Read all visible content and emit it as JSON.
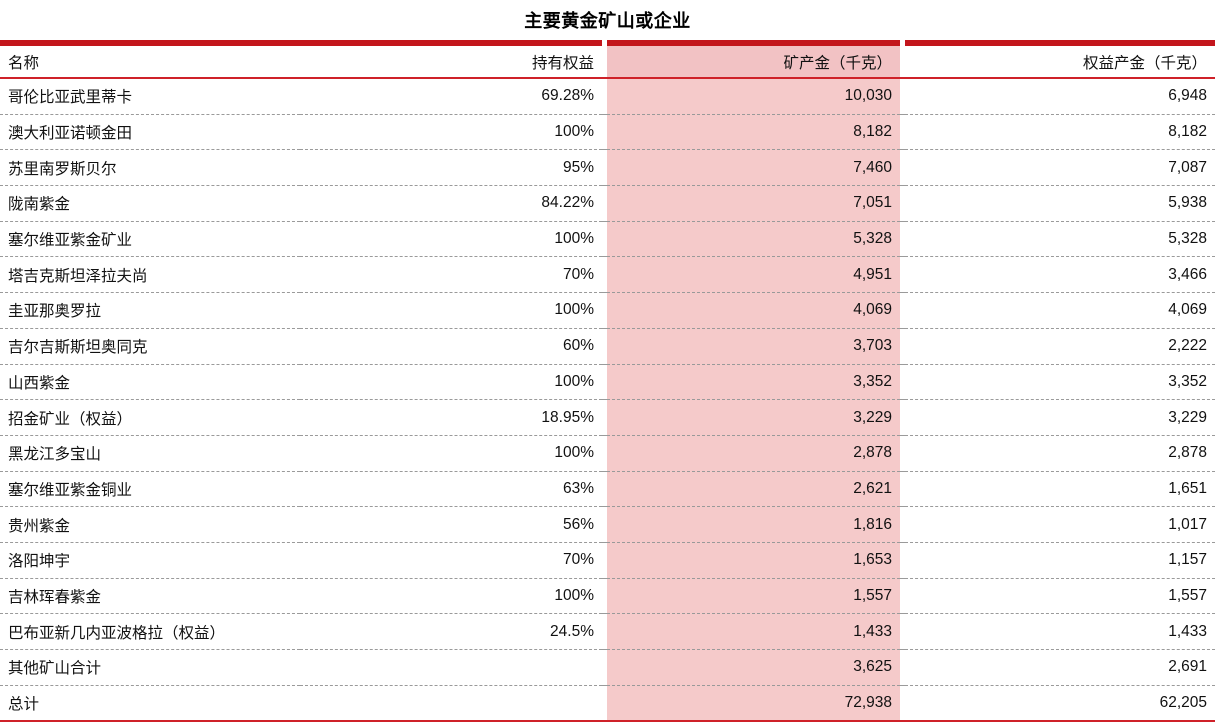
{
  "title": "主要黄金矿山或企业",
  "chart_data": {
    "type": "table",
    "title": "主要黄金矿山或企业",
    "columns": [
      "名称",
      "持有权益",
      "矿产金（千克）",
      "权益产金（千克）"
    ],
    "highlighted_column": "矿产金（千克）",
    "rows": [
      [
        "哥伦比亚武里蒂卡",
        "69.28%",
        "10,030",
        "6,948"
      ],
      [
        "澳大利亚诺顿金田",
        "100%",
        "8,182",
        "8,182"
      ],
      [
        "苏里南罗斯贝尔",
        "95%",
        "7,460",
        "7,087"
      ],
      [
        "陇南紫金",
        "84.22%",
        "7,051",
        "5,938"
      ],
      [
        "塞尔维亚紫金矿业",
        "100%",
        "5,328",
        "5,328"
      ],
      [
        "塔吉克斯坦泽拉夫尚",
        "70%",
        "4,951",
        "3,466"
      ],
      [
        "圭亚那奥罗拉",
        "100%",
        "4,069",
        "4,069"
      ],
      [
        "吉尔吉斯斯坦奥同克",
        "60%",
        "3,703",
        "2,222"
      ],
      [
        "山西紫金",
        "100%",
        "3,352",
        "3,352"
      ],
      [
        "招金矿业（权益）",
        "18.95%",
        "3,229",
        "3,229"
      ],
      [
        "黑龙江多宝山",
        "100%",
        "2,878",
        "2,878"
      ],
      [
        "塞尔维亚紫金铜业",
        "63%",
        "2,621",
        "1,651"
      ],
      [
        "贵州紫金",
        "56%",
        "1,816",
        "1,017"
      ],
      [
        "洛阳坤宇",
        "70%",
        "1,653",
        "1,157"
      ],
      [
        "吉林珲春紫金",
        "100%",
        "1,557",
        "1,557"
      ],
      [
        "巴布亚新几内亚波格拉（权益）",
        "24.5%",
        "1,433",
        "1,433"
      ],
      [
        "其他矿山合计",
        "",
        "3,625",
        "2,691"
      ],
      [
        "总计",
        "",
        "72,938",
        "62,205"
      ]
    ]
  },
  "colors": {
    "thick_top_rule": "#c3161c",
    "thin_rule": "#cf2129",
    "highlight_column_body": "#f5caca",
    "highlight_column_header": "#f2c2c4",
    "row_separator": "#9a9a9a",
    "text": "#111111"
  }
}
